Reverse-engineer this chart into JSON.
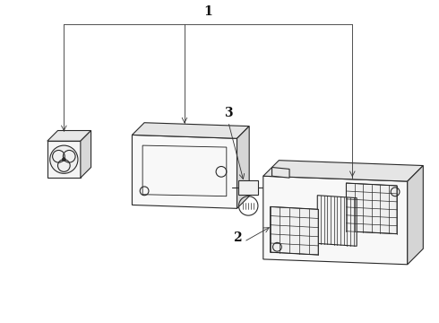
{
  "bg_color": "#ffffff",
  "lc": "#2a2a2a",
  "lw": 0.8,
  "label_fontsize": 9,
  "leader_lw": 0.6,
  "leader_color": "#333333"
}
